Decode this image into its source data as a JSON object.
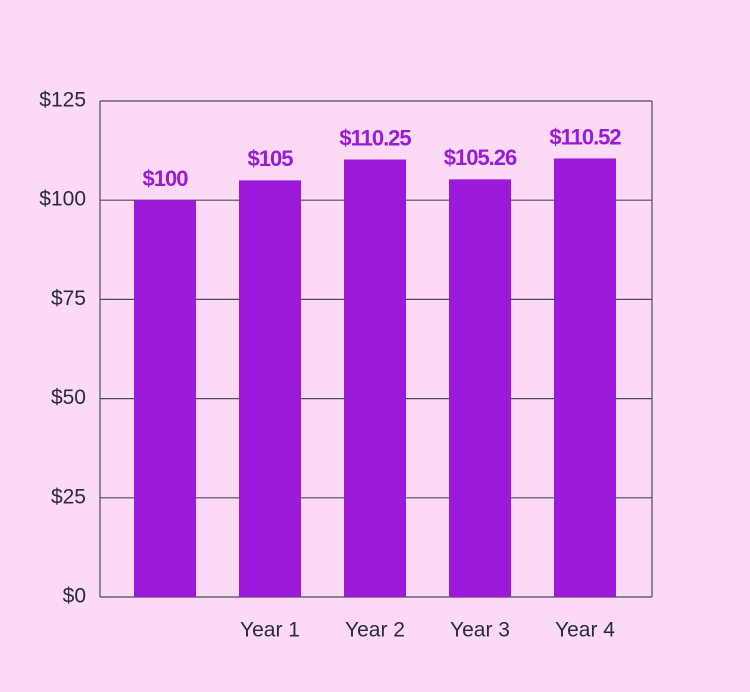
{
  "chart_data": {
    "type": "bar",
    "categories": [
      null,
      "Year 1",
      "Year 2",
      "Year 3",
      "Year 4"
    ],
    "values": [
      100,
      105,
      110.25,
      105.26,
      110.52
    ],
    "value_labels": [
      "$100",
      "$105",
      "$110.25",
      "$105.26",
      "$110.52"
    ],
    "color": "#9b19d9",
    "ylim": [
      0,
      125
    ],
    "yticks": [
      {
        "value": 0,
        "label": "$0"
      },
      {
        "value": 25,
        "label": "$25"
      },
      {
        "value": 50,
        "label": "$50"
      },
      {
        "value": 75,
        "label": "$75"
      },
      {
        "value": 100,
        "label": "$100"
      },
      {
        "value": 125,
        "label": "$125"
      }
    ],
    "grid": true
  }
}
